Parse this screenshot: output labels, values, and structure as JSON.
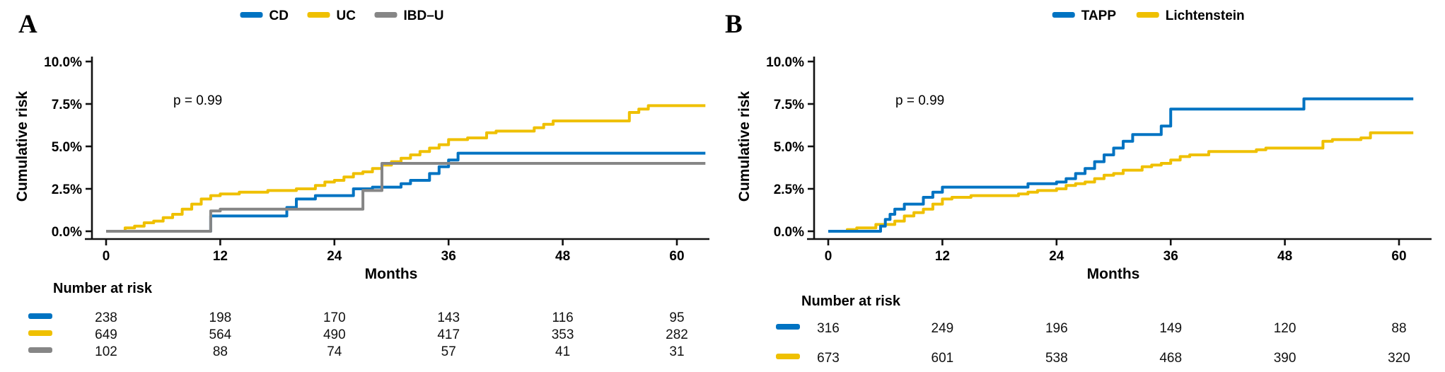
{
  "figure": {
    "background": "#ffffff",
    "accent_colors": {
      "blue": "#0073C2",
      "yellow": "#EFC000",
      "gray": "#868686",
      "axis": "#111111"
    }
  },
  "chart_data": [
    {
      "type": "line",
      "subtype": "kaplan-meier-step",
      "panel_label": "A",
      "title": "",
      "xlabel": "Months",
      "ylabel": "Cumulative risk",
      "annotation": "p = 0.99",
      "grid": false,
      "legend_position": "top-center",
      "xlim": [
        0,
        63
      ],
      "ylim": [
        0,
        10.4
      ],
      "x_ticks": [
        0,
        12,
        24,
        36,
        48,
        60
      ],
      "y_ticks": [
        0,
        2.5,
        5,
        7.5,
        10
      ],
      "y_tick_labels": [
        "0.0%",
        "2.5%",
        "5.0%",
        "7.5%",
        "10.0%"
      ],
      "series": [
        {
          "name": "CD",
          "color": "#0073C2",
          "points": [
            [
              0,
              0
            ],
            [
              11,
              0.9
            ],
            [
              19,
              1.4
            ],
            [
              20,
              1.9
            ],
            [
              22,
              2.1
            ],
            [
              26,
              2.5
            ],
            [
              28,
              2.6
            ],
            [
              31,
              2.8
            ],
            [
              32,
              3.0
            ],
            [
              34,
              3.4
            ],
            [
              35,
              3.8
            ],
            [
              36,
              4.2
            ],
            [
              37,
              4.6
            ],
            [
              63,
              4.6
            ]
          ]
        },
        {
          "name": "UC",
          "color": "#EFC000",
          "points": [
            [
              0,
              0
            ],
            [
              2,
              0.2
            ],
            [
              3,
              0.3
            ],
            [
              4,
              0.5
            ],
            [
              5,
              0.6
            ],
            [
              6,
              0.8
            ],
            [
              7,
              1.0
            ],
            [
              8,
              1.3
            ],
            [
              9,
              1.6
            ],
            [
              10,
              1.9
            ],
            [
              11,
              2.1
            ],
            [
              12,
              2.2
            ],
            [
              14,
              2.3
            ],
            [
              17,
              2.4
            ],
            [
              20,
              2.5
            ],
            [
              22,
              2.7
            ],
            [
              23,
              2.9
            ],
            [
              24,
              3.0
            ],
            [
              25,
              3.2
            ],
            [
              26,
              3.4
            ],
            [
              27,
              3.5
            ],
            [
              28,
              3.7
            ],
            [
              29,
              3.9
            ],
            [
              30,
              4.1
            ],
            [
              31,
              4.3
            ],
            [
              32,
              4.5
            ],
            [
              33,
              4.7
            ],
            [
              34,
              4.9
            ],
            [
              35,
              5.1
            ],
            [
              36,
              5.4
            ],
            [
              38,
              5.5
            ],
            [
              40,
              5.8
            ],
            [
              41,
              5.9
            ],
            [
              45,
              6.1
            ],
            [
              46,
              6.3
            ],
            [
              47,
              6.5
            ],
            [
              55,
              7.0
            ],
            [
              56,
              7.2
            ],
            [
              57,
              7.4
            ],
            [
              63,
              7.4
            ]
          ]
        },
        {
          "name": "IBD–U",
          "color": "#868686",
          "points": [
            [
              0,
              0
            ],
            [
              11,
              1.2
            ],
            [
              12,
              1.3
            ],
            [
              27,
              2.4
            ],
            [
              29,
              4.0
            ],
            [
              63,
              4.0
            ]
          ]
        }
      ],
      "number_at_risk": {
        "title": "Number at risk",
        "times": [
          0,
          12,
          24,
          36,
          48,
          60
        ],
        "rows": [
          {
            "name": "CD",
            "color": "#0073C2",
            "counts": [
              238,
              198,
              170,
              143,
              116,
              95
            ]
          },
          {
            "name": "UC",
            "color": "#EFC000",
            "counts": [
              649,
              564,
              490,
              417,
              353,
              282
            ]
          },
          {
            "name": "IBD–U",
            "color": "#868686",
            "counts": [
              102,
              88,
              74,
              57,
              41,
              31
            ]
          }
        ]
      }
    },
    {
      "type": "line",
      "subtype": "kaplan-meier-step",
      "panel_label": "B",
      "title": "",
      "xlabel": "Months",
      "ylabel": "Cumulative risk",
      "annotation": "p = 0.99",
      "grid": false,
      "legend_position": "top-center",
      "xlim": [
        0,
        61.5
      ],
      "ylim": [
        0,
        10.4
      ],
      "x_ticks": [
        0,
        12,
        24,
        36,
        48,
        60
      ],
      "y_ticks": [
        0,
        2.5,
        5,
        7.5,
        10
      ],
      "y_tick_labels": [
        "0.0%",
        "2.5%",
        "5.0%",
        "7.5%",
        "10.0%"
      ],
      "series": [
        {
          "name": "TAPP",
          "color": "#0073C2",
          "points": [
            [
              0,
              0
            ],
            [
              5.5,
              0.3
            ],
            [
              6,
              0.7
            ],
            [
              6.5,
              1.0
            ],
            [
              7,
              1.3
            ],
            [
              8,
              1.6
            ],
            [
              10,
              2.0
            ],
            [
              11,
              2.3
            ],
            [
              12,
              2.6
            ],
            [
              20,
              2.6
            ],
            [
              21,
              2.8
            ],
            [
              24,
              2.9
            ],
            [
              25,
              3.1
            ],
            [
              26,
              3.4
            ],
            [
              27,
              3.7
            ],
            [
              28,
              4.1
            ],
            [
              29,
              4.5
            ],
            [
              30,
              4.9
            ],
            [
              31,
              5.3
            ],
            [
              32,
              5.7
            ],
            [
              34,
              5.7
            ],
            [
              35,
              6.2
            ],
            [
              36,
              7.2
            ],
            [
              49,
              7.2
            ],
            [
              50,
              7.8
            ],
            [
              61.5,
              7.8
            ]
          ]
        },
        {
          "name": "Lichtenstein",
          "color": "#EFC000",
          "points": [
            [
              0,
              0
            ],
            [
              2,
              0.1
            ],
            [
              3,
              0.2
            ],
            [
              5,
              0.4
            ],
            [
              7,
              0.6
            ],
            [
              8,
              0.9
            ],
            [
              9,
              1.1
            ],
            [
              10,
              1.3
            ],
            [
              11,
              1.6
            ],
            [
              12,
              1.9
            ],
            [
              13,
              2.0
            ],
            [
              15,
              2.1
            ],
            [
              20,
              2.2
            ],
            [
              21,
              2.3
            ],
            [
              22,
              2.4
            ],
            [
              24,
              2.5
            ],
            [
              25,
              2.7
            ],
            [
              26,
              2.8
            ],
            [
              27,
              2.9
            ],
            [
              28,
              3.1
            ],
            [
              29,
              3.3
            ],
            [
              30,
              3.4
            ],
            [
              31,
              3.6
            ],
            [
              33,
              3.8
            ],
            [
              34,
              3.9
            ],
            [
              35,
              4.0
            ],
            [
              36,
              4.2
            ],
            [
              37,
              4.4
            ],
            [
              38,
              4.5
            ],
            [
              40,
              4.7
            ],
            [
              45,
              4.8
            ],
            [
              46,
              4.9
            ],
            [
              52,
              5.3
            ],
            [
              53,
              5.4
            ],
            [
              56,
              5.5
            ],
            [
              57,
              5.8
            ],
            [
              61.5,
              5.8
            ]
          ]
        }
      ],
      "number_at_risk": {
        "title": "Number at risk",
        "times": [
          0,
          12,
          24,
          36,
          48,
          60
        ],
        "rows": [
          {
            "name": "TAPP",
            "color": "#0073C2",
            "counts": [
              316,
              249,
              196,
              149,
              120,
              88
            ]
          },
          {
            "name": "Lichtenstein",
            "color": "#EFC000",
            "counts": [
              673,
              601,
              538,
              468,
              390,
              320
            ]
          }
        ]
      }
    }
  ]
}
